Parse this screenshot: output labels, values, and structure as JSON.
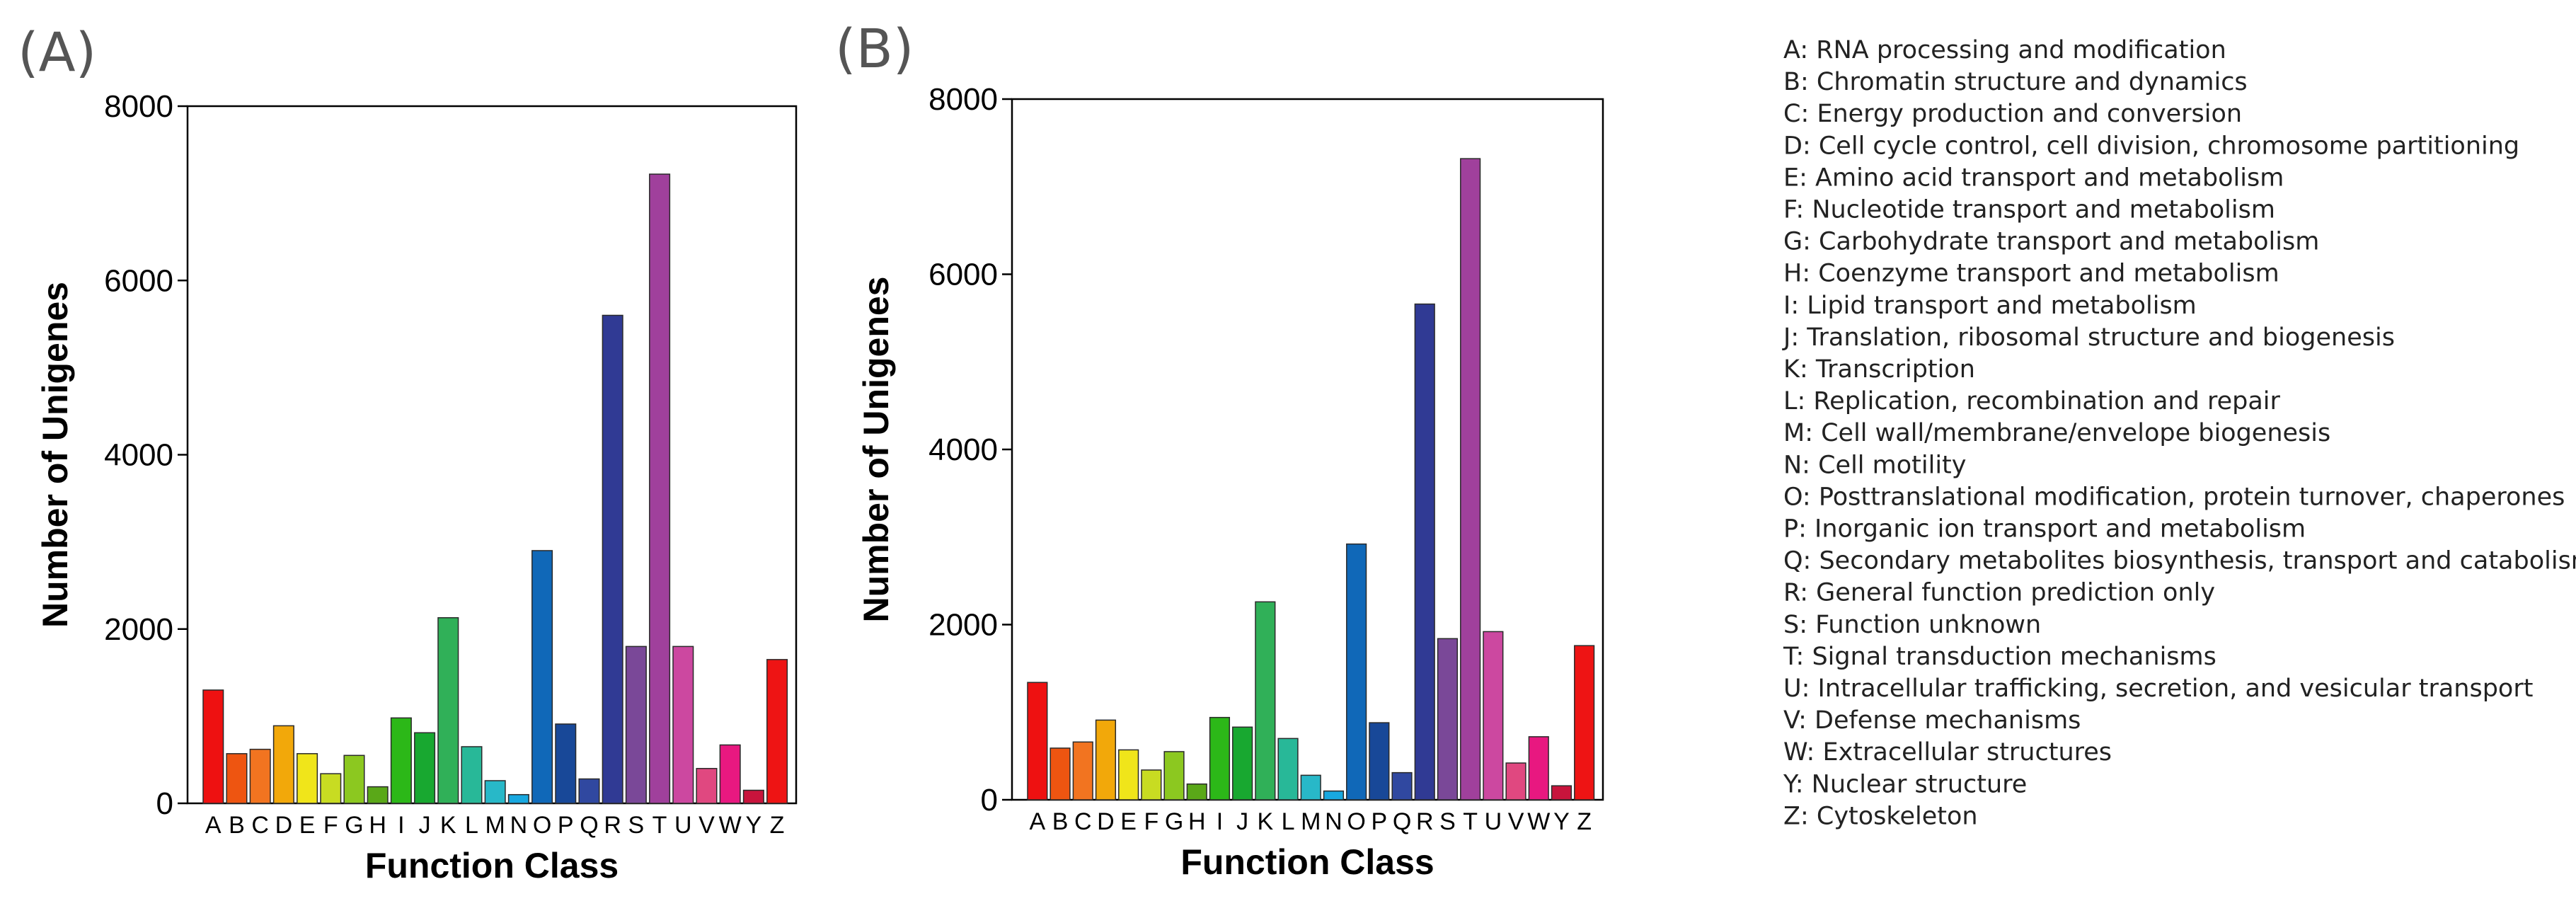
{
  "charts": [
    {
      "panel_label": "(A)",
      "chart_data": {
        "type": "bar",
        "title": "",
        "xlabel": "Function Class",
        "ylabel": "Number of Unigenes",
        "ylim": [
          0,
          8000
        ],
        "yticks": [
          0,
          2000,
          4000,
          6000,
          8000
        ],
        "categories": [
          "A",
          "B",
          "C",
          "D",
          "E",
          "F",
          "G",
          "H",
          "I",
          "J",
          "K",
          "L",
          "M",
          "N",
          "O",
          "P",
          "Q",
          "R",
          "S",
          "T",
          "U",
          "V",
          "W",
          "Y",
          "Z"
        ],
        "values": [
          1300,
          570,
          620,
          890,
          570,
          340,
          550,
          190,
          980,
          810,
          2130,
          650,
          260,
          100,
          2900,
          910,
          280,
          5600,
          1800,
          7220,
          1800,
          400,
          670,
          150,
          1650
        ]
      }
    },
    {
      "panel_label": "(B)",
      "chart_data": {
        "type": "bar",
        "title": "",
        "xlabel": "Function Class",
        "ylabel": "Number of Unigenes",
        "ylim": [
          0,
          8000
        ],
        "yticks": [
          0,
          2000,
          4000,
          6000,
          8000
        ],
        "categories": [
          "A",
          "B",
          "C",
          "D",
          "E",
          "F",
          "G",
          "H",
          "I",
          "J",
          "K",
          "L",
          "M",
          "N",
          "O",
          "P",
          "Q",
          "R",
          "S",
          "T",
          "U",
          "V",
          "W",
          "Y",
          "Z"
        ],
        "values": [
          1340,
          590,
          660,
          910,
          570,
          340,
          550,
          180,
          940,
          830,
          2260,
          700,
          280,
          100,
          2920,
          880,
          310,
          5660,
          1840,
          7320,
          1920,
          420,
          720,
          160,
          1760
        ]
      }
    }
  ],
  "bar_colors": [
    "#ee1111",
    "#ee5511",
    "#f27420",
    "#f2a80a",
    "#f0e51a",
    "#c8dc22",
    "#8cc820",
    "#5aa818",
    "#2cb818",
    "#18a830",
    "#30b058",
    "#28b898",
    "#28b8c8",
    "#18a8e0",
    "#1068b8",
    "#184898",
    "#3048a0",
    "#303a94",
    "#7a4898",
    "#a0409c",
    "#cc48a0",
    "#e04880",
    "#e81880",
    "#c8143c",
    "#ee1414"
  ],
  "legend": [
    "A: RNA processing and modification",
    "B: Chromatin structure and dynamics",
    "C: Energy production and conversion",
    "D: Cell cycle control, cell division, chromosome partitioning",
    "E: Amino acid transport and metabolism",
    "F: Nucleotide transport and metabolism",
    "G: Carbohydrate transport and metabolism",
    "H: Coenzyme transport and metabolism",
    "I: Lipid transport and metabolism",
    "J: Translation, ribosomal structure and biogenesis",
    "K: Transcription",
    "L: Replication, recombination and repair",
    "M: Cell wall/membrane/envelope biogenesis",
    "N: Cell motility",
    "O: Posttranslational modification, protein turnover, chaperones",
    "P: Inorganic ion transport and metabolism",
    "Q: Secondary metabolites biosynthesis, transport and catabolism",
    "R: General function prediction only",
    "S: Function unknown",
    "T: Signal transduction mechanisms",
    "U: Intracellular trafficking, secretion, and vesicular transport",
    "V: Defense mechanisms",
    "W: Extracellular structures",
    "Y: Nuclear structure",
    "Z: Cytoskeleton"
  ]
}
